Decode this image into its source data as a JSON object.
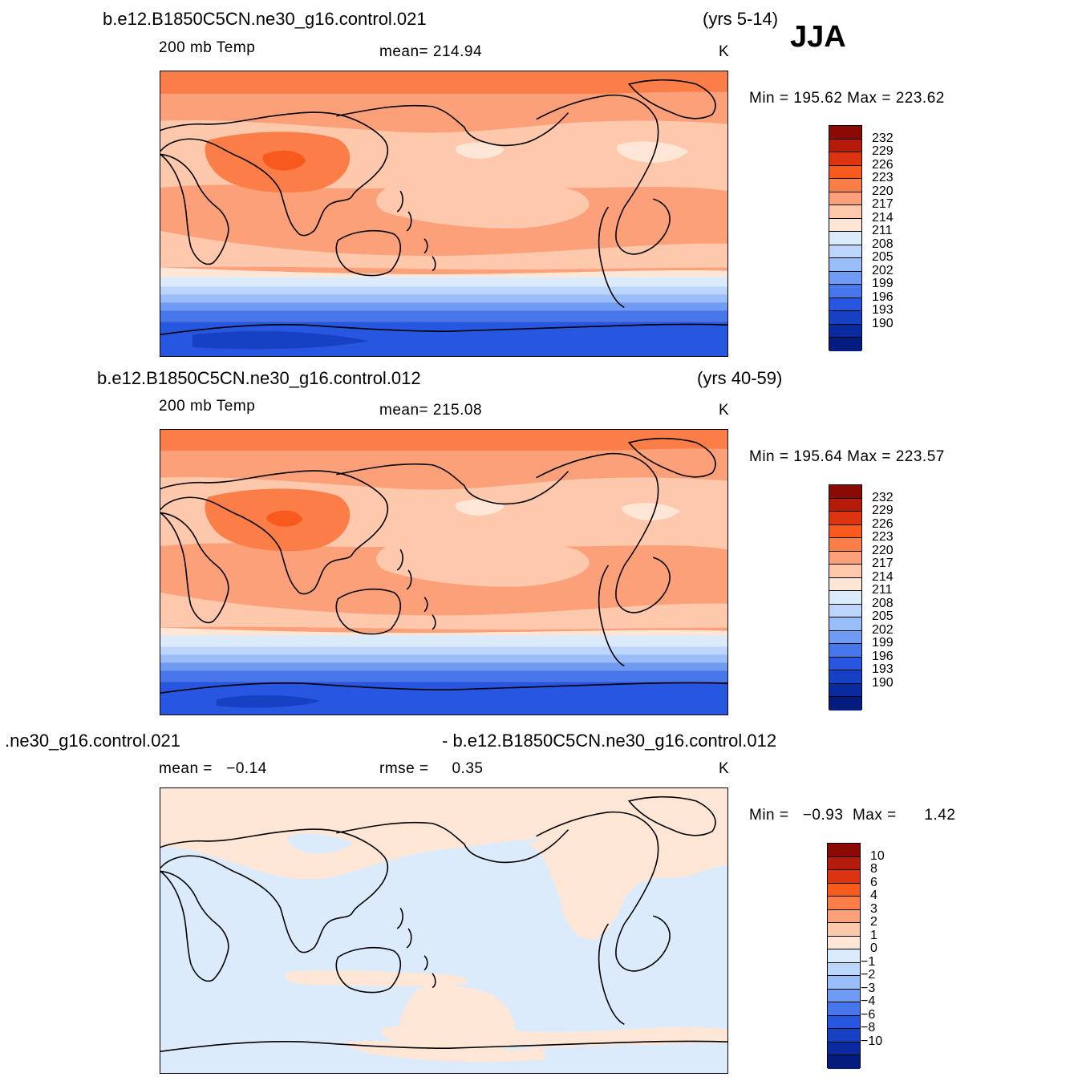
{
  "season": "JJA",
  "panels": [
    {
      "case": "b.e12.B1850C5CN.ne30_g16.control.021",
      "years": "(yrs 5-14)",
      "field": "200 mb Temp",
      "stat1": "mean=  214.94",
      "stat2": "",
      "units": "K",
      "minmax": "Min =  195.62  Max =  223.62",
      "colorbar": {
        "labels": [
          "232",
          "229",
          "226",
          "223",
          "220",
          "217",
          "214",
          "211",
          "208",
          "205",
          "202",
          "199",
          "196",
          "193",
          "190"
        ],
        "colors": [
          "#8b0a06",
          "#b51b0b",
          "#dc3410",
          "#f85a1e",
          "#fb7d47",
          "#fca07a",
          "#fdc8ab",
          "#fee6d6",
          "#dcebfc",
          "#bcd5fb",
          "#98bdf8",
          "#6f9cf2",
          "#4877ec",
          "#2757e1",
          "#1641c2",
          "#0a2ba0",
          "#061c7c"
        ]
      }
    },
    {
      "case": "b.e12.B1850C5CN.ne30_g16.control.012",
      "years": "(yrs 40-59)",
      "field": "200 mb Temp",
      "stat1": "mean=  215.08",
      "stat2": "",
      "units": "K",
      "minmax": "Min =  195.64  Max =  223.57",
      "colorbar": {
        "labels": [
          "232",
          "229",
          "226",
          "223",
          "220",
          "217",
          "214",
          "211",
          "208",
          "205",
          "202",
          "199",
          "196",
          "193",
          "190"
        ],
        "colors": [
          "#8b0a06",
          "#b51b0b",
          "#dc3410",
          "#f85a1e",
          "#fb7d47",
          "#fca07a",
          "#fdc8ab",
          "#fee6d6",
          "#dcebfc",
          "#bcd5fb",
          "#98bdf8",
          "#6f9cf2",
          "#4877ec",
          "#2757e1",
          "#1641c2",
          "#0a2ba0",
          "#061c7c"
        ]
      }
    },
    {
      "case_left": ".ne30_g16.control.021",
      "case_right": "- b.e12.B1850C5CN.ne30_g16.control.012",
      "stat1": "mean =   −0.14",
      "stat2": "rmse =     0.35",
      "units": "K",
      "minmax": "Min =   −0.93  Max =      1.42",
      "colorbar": {
        "labels": [
          "10",
          "8",
          "6",
          "4",
          "3",
          "2",
          "1",
          "0",
          "−1",
          "−2",
          "−3",
          "−4",
          "−6",
          "−8",
          "−10"
        ],
        "colors": [
          "#8b0a06",
          "#b51b0b",
          "#dc3410",
          "#f85a1e",
          "#fb7d47",
          "#fca07a",
          "#fdc8ab",
          "#fee6d6",
          "#dcebfc",
          "#bcd5fb",
          "#98bdf8",
          "#6f9cf2",
          "#4877ec",
          "#2757e1",
          "#1641c2",
          "#0a2ba0",
          "#061c7c"
        ]
      }
    }
  ]
}
